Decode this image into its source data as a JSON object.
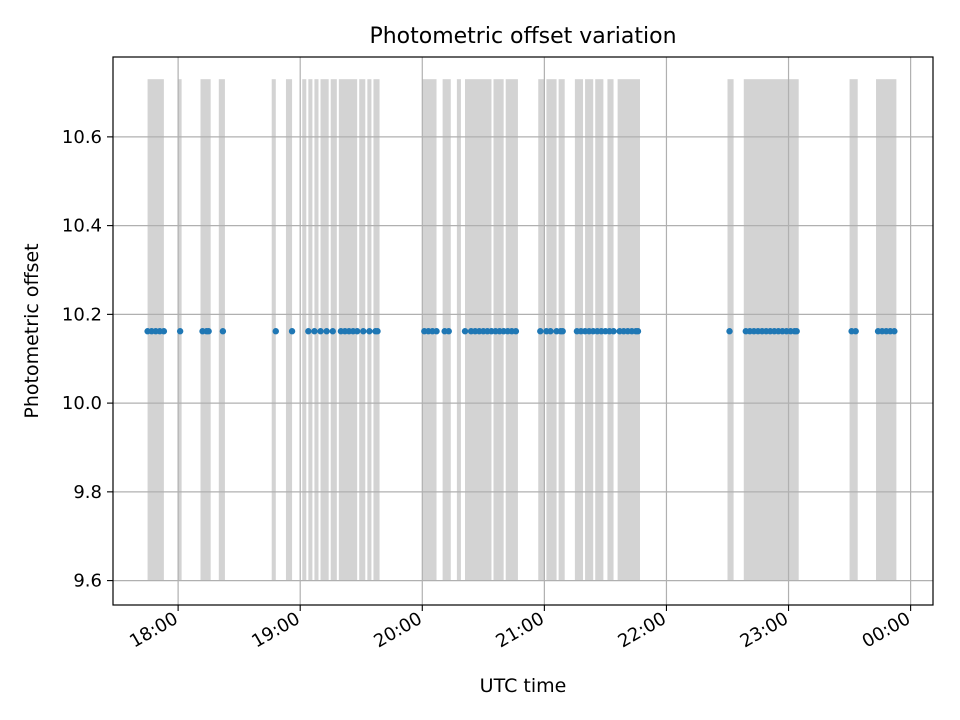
{
  "chart_data": {
    "type": "scatter",
    "title": "Photometric offset variation",
    "xlabel": "UTC time",
    "ylabel": "Photometric offset",
    "x_axis": "time",
    "xlim": [
      "17:28",
      "00:11"
    ],
    "ylim": [
      9.545,
      10.78
    ],
    "x_ticks": [
      "18:00",
      "19:00",
      "20:00",
      "21:00",
      "22:00",
      "23:00",
      "00:00"
    ],
    "y_ticks": [
      9.6,
      9.8,
      10.0,
      10.2,
      10.4,
      10.6
    ],
    "y_tick_labels": [
      "9.6",
      "9.8",
      "10.0",
      "10.2",
      "10.4",
      "10.6"
    ],
    "grid": true,
    "legend": "none",
    "colors": {
      "points": "#1f77b4",
      "spans": "#d3d3d3",
      "grid": "#b0b0b0"
    },
    "shaded_range": [
      9.6,
      10.73
    ],
    "shaded_intervals": [
      [
        "17:45",
        "17:53"
      ],
      [
        "18:00",
        "18:01"
      ],
      [
        "18:11",
        "18:16"
      ],
      [
        "18:20",
        "18:23"
      ],
      [
        "18:46",
        "18:48"
      ],
      [
        "18:53",
        "18:56"
      ],
      [
        "19:01",
        "19:03"
      ],
      [
        "19:04",
        "19:06"
      ],
      [
        "19:07",
        "19:09"
      ],
      [
        "19:10",
        "19:14"
      ],
      [
        "19:15",
        "19:18"
      ],
      [
        "19:19",
        "19:28"
      ],
      [
        "19:29",
        "19:32"
      ],
      [
        "19:33",
        "19:35"
      ],
      [
        "19:36",
        "19:39"
      ],
      [
        "20:00",
        "20:07"
      ],
      [
        "20:10",
        "20:14"
      ],
      [
        "20:17",
        "20:19"
      ],
      [
        "20:21",
        "20:34"
      ],
      [
        "20:35",
        "20:40"
      ],
      [
        "20:41",
        "20:47"
      ],
      [
        "20:57",
        "21:00"
      ],
      [
        "21:01",
        "21:06"
      ],
      [
        "21:07",
        "21:10"
      ],
      [
        "21:15",
        "21:19"
      ],
      [
        "21:20",
        "21:24"
      ],
      [
        "21:25",
        "21:29"
      ],
      [
        "21:31",
        "21:34"
      ],
      [
        "21:36",
        "21:47"
      ],
      [
        "22:30",
        "22:33"
      ],
      [
        "22:38",
        "23:05"
      ],
      [
        "23:30",
        "23:34"
      ],
      [
        "23:43",
        "23:53"
      ]
    ],
    "series": [
      {
        "y": 10.162,
        "x": [
          "17:45",
          "17:47",
          "17:49",
          "17:51",
          "17:53",
          "18:01",
          "18:12",
          "18:14",
          "18:15",
          "18:22",
          "18:48",
          "18:56",
          "19:04",
          "19:07",
          "19:10",
          "19:13",
          "19:16",
          "19:20",
          "19:22",
          "19:24",
          "19:26",
          "19:28",
          "19:31",
          "19:34",
          "19:37",
          "19:38",
          "20:01",
          "20:03",
          "20:05",
          "20:07",
          "20:11",
          "20:13",
          "20:21",
          "20:24",
          "20:26",
          "20:28",
          "20:30",
          "20:32",
          "20:34",
          "20:36",
          "20:38",
          "20:40",
          "20:42",
          "20:44",
          "20:46",
          "20:58",
          "21:01",
          "21:03",
          "21:06",
          "21:08",
          "21:09",
          "21:16",
          "21:18",
          "21:20",
          "21:22",
          "21:24",
          "21:26",
          "21:28",
          "21:30",
          "21:32",
          "21:34",
          "21:37",
          "21:39",
          "21:41",
          "21:43",
          "21:45",
          "21:46",
          "22:31",
          "22:39",
          "22:41",
          "22:43",
          "22:45",
          "22:47",
          "22:49",
          "22:51",
          "22:53",
          "22:55",
          "22:57",
          "22:59",
          "23:01",
          "23:03",
          "23:04",
          "23:31",
          "23:33",
          "23:44",
          "23:46",
          "23:48",
          "23:50",
          "23:52"
        ]
      }
    ]
  }
}
